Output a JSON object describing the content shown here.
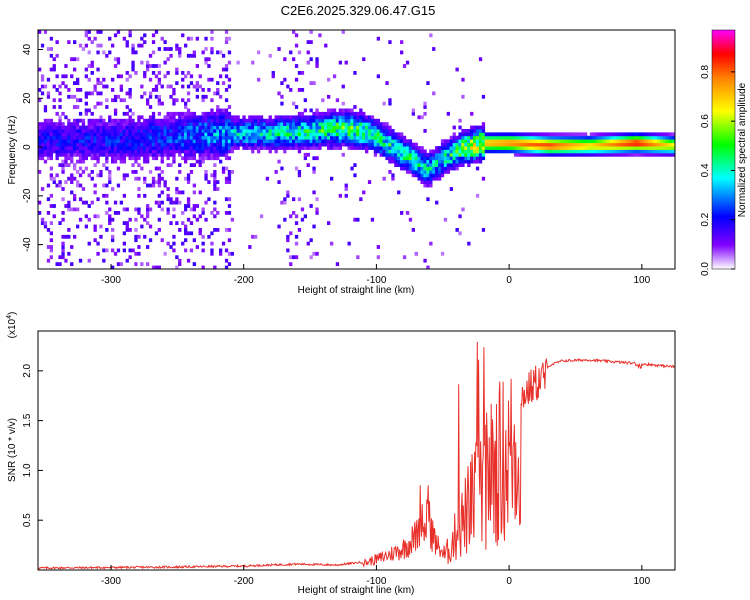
{
  "title": "C2E6.2025.329.06.47.G15",
  "chart_data": [
    {
      "type": "heatmap",
      "title": "C2E6.2025.329.06.47.G15",
      "xlabel": "Height of straight line (km)",
      "ylabel": "Frequency (Hz)",
      "xlim": [
        -355,
        125
      ],
      "ylim": [
        -50,
        48
      ],
      "x_ticks": [
        -300,
        -200,
        -100,
        0,
        100
      ],
      "y_ticks": [
        -40,
        -20,
        0,
        20,
        40
      ],
      "colorbar": {
        "label": "Normalized spectral amplitude",
        "range": [
          0,
          0.97
        ],
        "ticks": [
          0.0,
          0.2,
          0.4,
          0.6,
          0.8
        ],
        "tick_labels": [
          "0.0",
          "0.2",
          "0.4",
          "0.6",
          "0.8"
        ],
        "colormap": [
          "#ffffff",
          "#8000ff",
          "#0000ff",
          "#00ffff",
          "#00ff00",
          "#ffff00",
          "#ff8000",
          "#ff0000",
          "#ff00ff"
        ]
      },
      "ridge": {
        "description_points": [
          {
            "x": -355,
            "y": 2,
            "amp": 0.22
          },
          {
            "x": -300,
            "y": 2,
            "amp": 0.24
          },
          {
            "x": -250,
            "y": 4,
            "amp": 0.3
          },
          {
            "x": -210,
            "y": 5,
            "amp": 0.4
          },
          {
            "x": -180,
            "y": 5,
            "amp": 0.45
          },
          {
            "x": -150,
            "y": 6,
            "amp": 0.5
          },
          {
            "x": -125,
            "y": 7,
            "amp": 0.6
          },
          {
            "x": -105,
            "y": 5,
            "amp": 0.55
          },
          {
            "x": -90,
            "y": 0,
            "amp": 0.5
          },
          {
            "x": -75,
            "y": -5,
            "amp": 0.5
          },
          {
            "x": -62,
            "y": -10,
            "amp": 0.45
          },
          {
            "x": -50,
            "y": -5,
            "amp": 0.45
          },
          {
            "x": -35,
            "y": -1,
            "amp": 0.6
          },
          {
            "x": -20,
            "y": 1,
            "amp": 0.75
          },
          {
            "x": 0,
            "y": 1,
            "amp": 0.8
          },
          {
            "x": 30,
            "y": 0,
            "amp": 0.85
          },
          {
            "x": 60,
            "y": 0,
            "amp": 0.7
          },
          {
            "x": 95,
            "y": 1,
            "amp": 0.9
          },
          {
            "x": 125,
            "y": 0,
            "amp": 0.65
          }
        ]
      }
    },
    {
      "type": "line",
      "xlabel": "Height of straight line (km)",
      "ylabel": "SNR (10 * v/v)",
      "y_scale_label": "(x10",
      "y_scale_exponent": "4",
      "y_scale_suffix": ")",
      "xlim": [
        -355,
        125
      ],
      "ylim": [
        0,
        2.4
      ],
      "x_ticks": [
        -300,
        -200,
        -100,
        0,
        100
      ],
      "y_ticks": [
        0.5,
        1.0,
        1.5,
        2.0
      ],
      "y_tick_labels": [
        "0.5",
        "1.0",
        "1.5",
        "2.0"
      ],
      "series": [
        {
          "name": "SNR",
          "color": "#e8302a",
          "envelope_points": [
            {
              "x": -355,
              "y": 0.02
            },
            {
              "x": -250,
              "y": 0.03
            },
            {
              "x": -200,
              "y": 0.04
            },
            {
              "x": -160,
              "y": 0.06
            },
            {
              "x": -130,
              "y": 0.05
            },
            {
              "x": -110,
              "y": 0.08
            },
            {
              "x": -95,
              "y": 0.15
            },
            {
              "x": -80,
              "y": 0.25
            },
            {
              "x": -70,
              "y": 0.4
            },
            {
              "x": -65,
              "y": 0.7
            },
            {
              "x": -60,
              "y": 0.55
            },
            {
              "x": -55,
              "y": 0.3
            },
            {
              "x": -48,
              "y": 0.2
            },
            {
              "x": -40,
              "y": 0.5
            },
            {
              "x": -30,
              "y": 0.9
            },
            {
              "x": -20,
              "y": 1.2
            },
            {
              "x": -10,
              "y": 1.5
            },
            {
              "x": 0,
              "y": 1.65
            },
            {
              "x": 10,
              "y": 1.85
            },
            {
              "x": 25,
              "y": 2.03
            },
            {
              "x": 40,
              "y": 2.1
            },
            {
              "x": 60,
              "y": 2.11
            },
            {
              "x": 80,
              "y": 2.09
            },
            {
              "x": 100,
              "y": 2.07
            },
            {
              "x": 125,
              "y": 2.04
            }
          ]
        }
      ]
    }
  ]
}
